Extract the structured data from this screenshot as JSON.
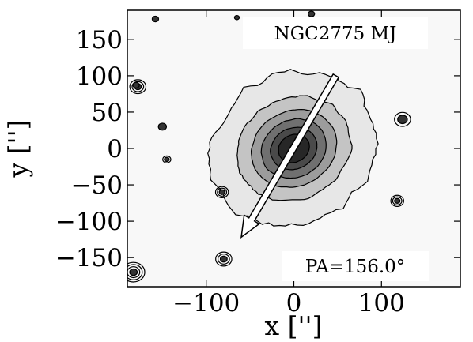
{
  "chart_data": {
    "type": "contour",
    "xlabel": "x ['']",
    "ylabel": "y ['']",
    "xlim": [
      -190,
      190
    ],
    "ylim": [
      -190,
      190
    ],
    "x_ticks": [
      -100,
      0,
      100
    ],
    "x_tick_labels": [
      "−100",
      "0",
      "100"
    ],
    "y_ticks": [
      150,
      100,
      50,
      0,
      -50,
      -100,
      -150
    ],
    "y_tick_labels": [
      "150",
      "100",
      "50",
      "0",
      "−50",
      "−100",
      "−150"
    ],
    "grid": false,
    "annotations": {
      "object_label": "NGC2775 MJ",
      "pa_label": "PA=156.0°",
      "position_angle_deg": 156.0
    },
    "galaxy": {
      "center": [
        0,
        0
      ],
      "axis_ratio": 0.85,
      "contour_semi_major": [
        108,
        74,
        55,
        42,
        30,
        20
      ],
      "contour_fills": [
        "#e7e7e7",
        "#c4c4c4",
        "#9c9c9c",
        "#707070",
        "#4a4a4a",
        "#272727"
      ]
    },
    "arrow": {
      "start": [
        48,
        100
      ],
      "end": [
        -60,
        -122
      ]
    },
    "stars": [
      {
        "x": -178,
        "y": 85,
        "r": 5,
        "levels": 3
      },
      {
        "x": -183,
        "y": -170,
        "r": 7,
        "levels": 4
      },
      {
        "x": -80,
        "y": -152,
        "r": 5,
        "levels": 3
      },
      {
        "x": -82,
        "y": -60,
        "r": 4,
        "levels": 3
      },
      {
        "x": 124,
        "y": 40,
        "r": 5,
        "levels": 2
      },
      {
        "x": 118,
        "y": -72,
        "r": 4,
        "levels": 3
      },
      {
        "x": -180,
        "y": 87,
        "r": 2,
        "levels": 1
      },
      {
        "x": -145,
        "y": -15,
        "r": 2.5,
        "levels": 2
      },
      {
        "x": -150,
        "y": 30,
        "r": 2.5,
        "levels": 1
      },
      {
        "x": -158,
        "y": 178,
        "r": 2,
        "levels": 1
      },
      {
        "x": 20,
        "y": 185,
        "r": 2,
        "levels": 1
      },
      {
        "x": -65,
        "y": 180,
        "r": 1.5,
        "levels": 1
      }
    ],
    "colors": {
      "background": "#f8f8f8",
      "frame": "#000000",
      "arrow_fill": "#ffffff",
      "arrow_stroke": "#000000"
    }
  }
}
